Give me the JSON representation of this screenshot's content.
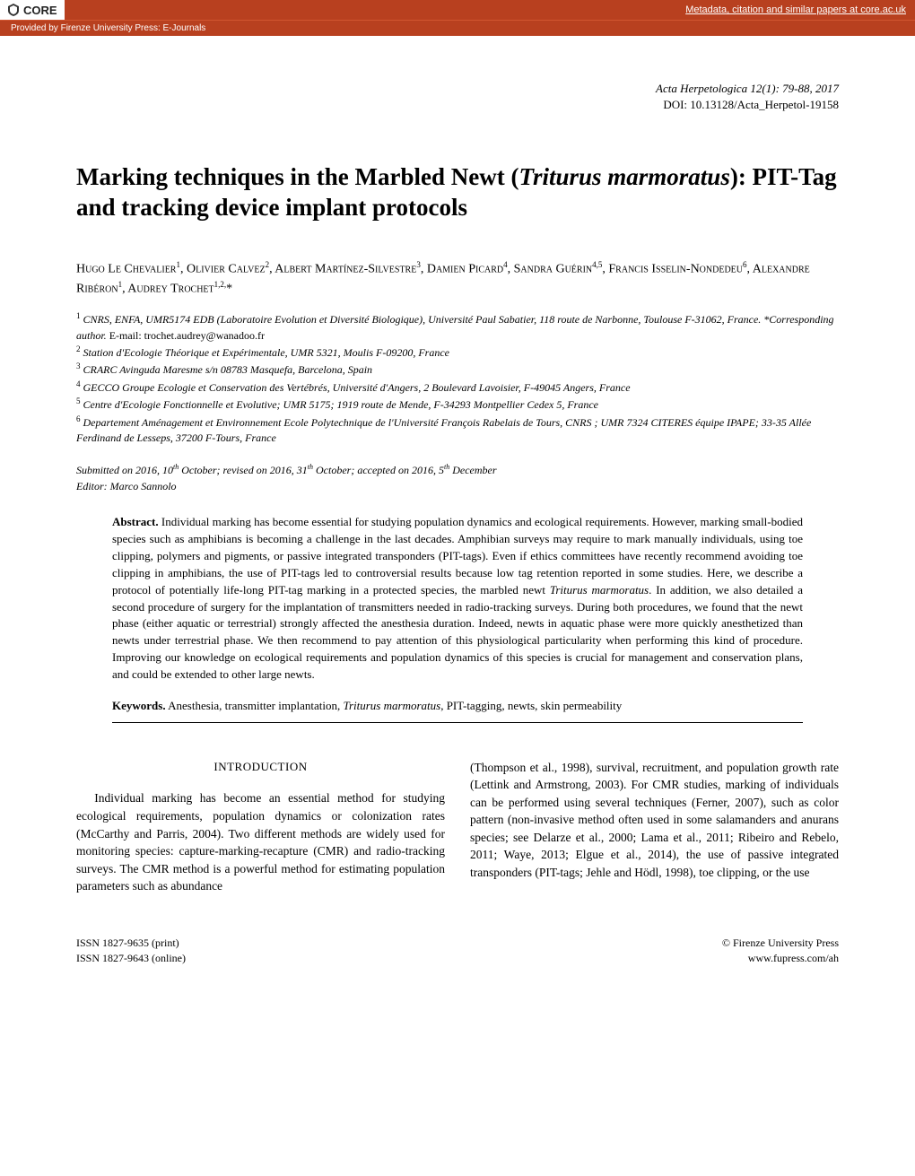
{
  "banner": {
    "core_label": "CORE",
    "metadata_link": "Metadata, citation and similar papers at core.ac.uk",
    "provided_by": "Provided by Firenze University Press: E-Journals"
  },
  "journal": {
    "name_vol": "Acta Herpetologica 12(1): 79-88, 2017",
    "doi": "DOI: 10.13128/Acta_Herpetol-19158"
  },
  "title": {
    "prefix": "Marking techniques in the Marbled Newt (",
    "species": "Triturus marmoratus",
    "suffix": "): PIT-Tag and tracking device implant protocols"
  },
  "authors_html": "Hugo Le Chevalier<sup>1</sup>, Olivier Calvez<sup>2</sup>, Albert Martínez-Silvestre<sup>3</sup>, Damien Picard<sup>4</sup>, Sandra Guérin<sup>4,5</sup>, Francis Isselin-Nondedeu<sup>6</sup>, Alexandre Ribéron<sup>1</sup>, Audrey Trochet<sup>1,2,</sup>*",
  "affiliations": [
    "<sup>1</sup> CNRS, ENFA, UMR5174 EDB (Laboratoire Evolution et Diversité Biologique), Université Paul Sabatier, 118 route de Narbonne, Toulouse F-31062, France. *Corresponding author. <span class=\"email\">E-mail: trochet.audrey@wanadoo.fr</span>",
    "<sup>2</sup> Station d'Ecologie Théorique et Expérimentale, UMR 5321, Moulis F-09200, France",
    "<sup>3</sup> CRARC Avinguda Maresme s/n 08783 Masquefa, Barcelona, Spain",
    "<sup>4</sup> GECCO Groupe Ecologie et Conservation des Vertébrés, Université d'Angers, 2 Boulevard Lavoisier, F-49045 Angers, France",
    "<sup>5</sup> Centre d'Ecologie Fonctionnelle et Evolutive; UMR 5175; 1919 route de Mende, F-34293 Montpellier Cedex 5, France",
    "<sup>6</sup> Departement Aménagement et Environnement Ecole Polytechnique de l'Université François Rabelais de Tours, CNRS ; UMR 7324 CITERES équipe IPAPE; 33-35 Allée Ferdinand de Lesseps, 37200 F-Tours, France"
  ],
  "submission": {
    "line1": "Submitted on 2016, 10<sup>th</sup> October; revised on 2016, 31<sup>th</sup> October; accepted on 2016, 5<sup>th</sup> December",
    "line2": "Editor: Marco Sannolo"
  },
  "abstract": {
    "label": "Abstract.",
    "text_html": " Individual marking has become essential for studying population dynamics and ecological requirements. However, marking small-bodied species such as amphibians is becoming a challenge in the last decades. Amphibian surveys may require to mark manually individuals, using toe clipping, polymers and pigments, or passive integrated transponders (PIT-tags). Even if ethics committees have recently recommend avoiding toe clipping in amphibians, the use of PIT-tags led to controversial results because low tag retention reported in some studies. Here, we describe a protocol of potentially life-long PIT-tag marking in a protected species, the marbled newt <span class=\"species\">Triturus marmoratus</span>. In addition, we also detailed a second procedure of surgery for the implantation of transmitters needed in radio-tracking surveys. During both procedures, we found that the newt phase (either aquatic or terrestrial) strongly affected the anesthesia duration. Indeed, newts in aquatic phase were more quickly anesthetized than newts under terrestrial phase. We then recommend to pay attention of this physiological particularity when performing this kind of procedure. Improving our knowledge on ecological requirements and population dynamics of this species is crucial for management and conservation plans, and could be extended to other large newts."
  },
  "keywords": {
    "label": "Keywords.",
    "text_html": "   Anesthesia, transmitter implantation, <span class=\"species\">Triturus marmoratus</span>, PIT-tagging, newts, skin permeability"
  },
  "body": {
    "section_heading": "INTRODUCTION",
    "col1": "Individual marking has become an essential method for studying ecological requirements, population dynamics or colonization rates (McCarthy and Parris, 2004). Two different methods are widely used for monitoring species: capture-marking-recapture (CMR) and radio-tracking surveys. The CMR method is a powerful method for estimating population parameters such as abundance",
    "col2": "(Thompson et al., 1998), survival, recruitment, and population growth rate (Lettink and Armstrong, 2003). For CMR studies, marking of individuals can be performed using several techniques (Ferner, 2007), such as color pattern (non-invasive method often used in some salamanders and anurans species; see Delarze et al., 2000; Lama et al., 2011; Ribeiro and Rebelo, 2011; Waye, 2013; Elgue et al., 2014), the use of passive integrated transponders (PIT-tags; Jehle and Hödl, 1998), toe clipping, or the use"
  },
  "footer": {
    "issn_print": "ISSN 1827-9635 (print)",
    "issn_online": "ISSN 1827-9643 (online)",
    "copyright": "© Firenze University Press",
    "url": "www.fupress.com/ah"
  },
  "colors": {
    "banner_bg": "#b8401f",
    "banner_fg": "#ffffff",
    "page_bg": "#ffffff",
    "text": "#000000"
  }
}
